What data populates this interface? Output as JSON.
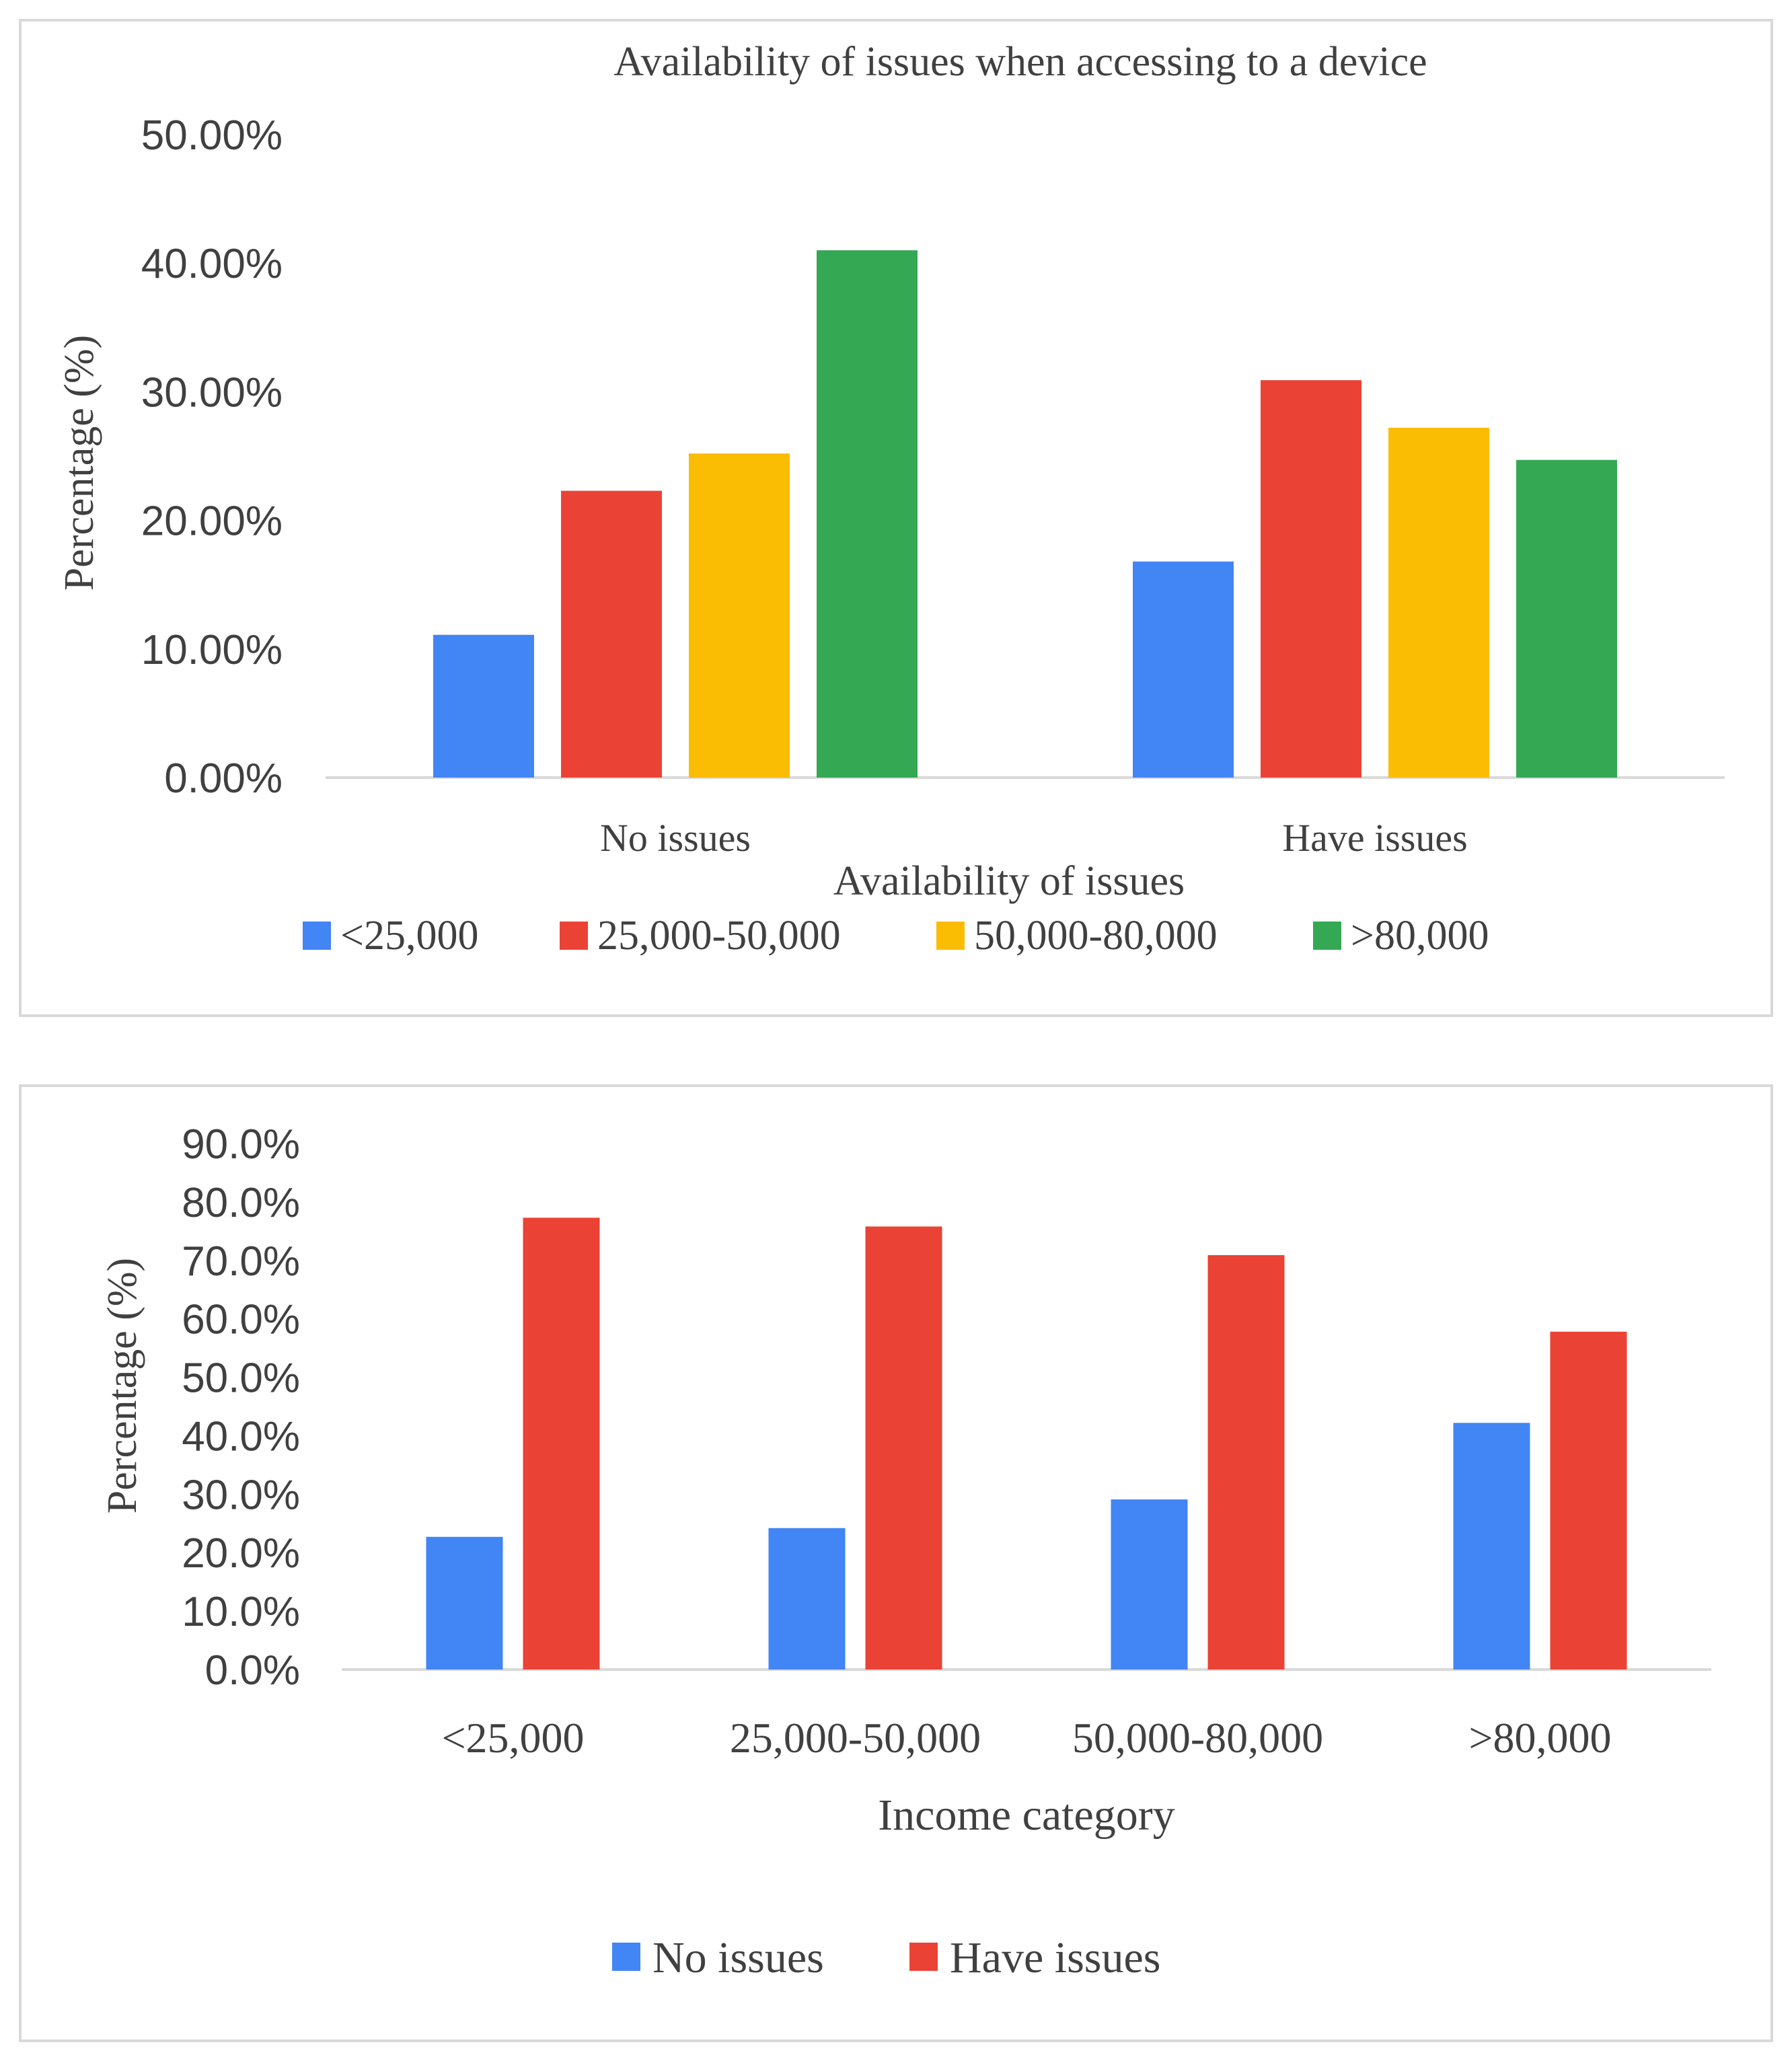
{
  "chart_data": [
    {
      "type": "bar",
      "title": "Availability of issues when accessing to a device",
      "xlabel": "Availability of issues",
      "ylabel": "Percentage (%)",
      "categories": [
        "No issues",
        "Have issues"
      ],
      "series": [
        {
          "name": "<25,000",
          "color": "#4285F4",
          "values": [
            11.1,
            16.8
          ]
        },
        {
          "name": "25,000-50,000",
          "color": "#EA4335",
          "values": [
            22.3,
            30.9
          ]
        },
        {
          "name": "50,000-80,000",
          "color": "#FBBC04",
          "values": [
            25.2,
            27.2
          ]
        },
        {
          "name": ">80,000",
          "color": "#34A853",
          "values": [
            41.0,
            24.7
          ]
        }
      ],
      "yticks": [
        "0.00%",
        "10.00%",
        "20.00%",
        "30.00%",
        "40.00%",
        "50.00%"
      ],
      "ylim": [
        0,
        50
      ],
      "grid": false,
      "legend": "bottom"
    },
    {
      "type": "bar",
      "title": "",
      "xlabel": "Income category",
      "ylabel": "Percentage (%)",
      "categories": [
        "<25,000",
        "25,000-50,000",
        "50,000-80,000",
        ">80,000"
      ],
      "series": [
        {
          "name": "No issues",
          "color": "#4285F4",
          "values": [
            22.7,
            24.2,
            29.1,
            42.2
          ]
        },
        {
          "name": "Have issues",
          "color": "#EA4335",
          "values": [
            77.3,
            75.8,
            70.9,
            57.8
          ]
        }
      ],
      "yticks": [
        "0.0%",
        "10.0%",
        "20.0%",
        "30.0%",
        "40.0%",
        "50.0%",
        "60.0%",
        "70.0%",
        "80.0%",
        "90.0%"
      ],
      "ylim": [
        0,
        90
      ],
      "grid": false,
      "legend": "bottom"
    }
  ]
}
